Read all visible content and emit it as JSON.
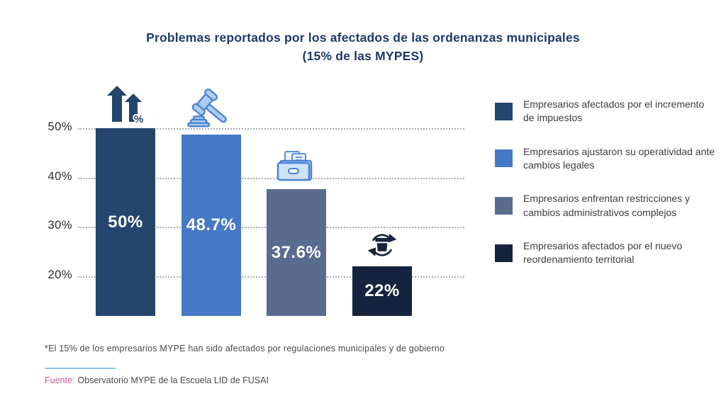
{
  "title": {
    "line1": "Problemas reportados por los afectados de las ordenanzas municipales",
    "line2": "(15% de las MYPES)"
  },
  "chart_data": {
    "type": "bar",
    "title": "Problemas reportados por los afectados de las ordenanzas municipales (15% de las MYPES)",
    "categories": [
      "Empresarios afectados por el incremento de impuestos",
      "Empresarios ajustaron su operatividad ante cambios legales",
      "Empresarios enfrentan restricciones y cambios administrativos complejos",
      "Empresarios afectados por el nuevo reordenamiento territorial"
    ],
    "values": [
      50,
      48.7,
      37.6,
      22
    ],
    "value_labels": [
      "50%",
      "48.7%",
      "37.6%",
      "22%"
    ],
    "bar_colors": [
      "#24456d",
      "#4579c5",
      "#5a6b90",
      "#16233f"
    ],
    "bar_icons": [
      "tax-increase-icon",
      "gavel-icon",
      "folder-documents-icon",
      "reorder-icon"
    ],
    "y_ticks": [
      "50%",
      "40%",
      "30%",
      "20%"
    ],
    "y_tick_values": [
      50,
      40,
      30,
      20
    ],
    "axis_min": 12,
    "ylim": [
      12,
      50
    ],
    "grid": "dotted",
    "legend_position": "right"
  },
  "footnote": "*El 15% de los empresarios MYPE han sido afectados por regulaciones municipales y de gobierno",
  "source": {
    "label": "Fuente:",
    "text": "Observatorio MYPE de la Escuela LID de FUSAI"
  },
  "colors": {
    "title": "#1e3a6d",
    "grid": "#a6abb3",
    "source_accent": "#d9539c",
    "divider": "#8fc4ea"
  }
}
